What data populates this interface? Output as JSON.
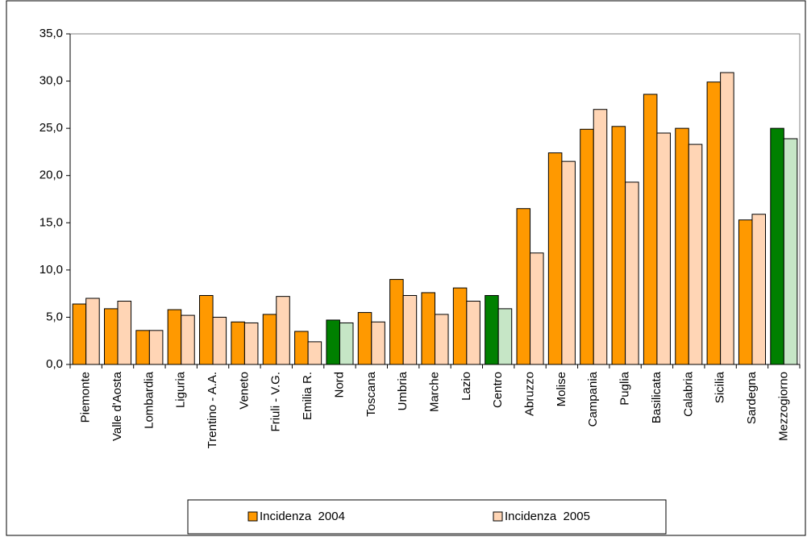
{
  "chart_data": {
    "type": "bar",
    "categories": [
      "Piemonte",
      "Valle d'Aosta",
      "Lombardia",
      "Liguria",
      "Trentino - A.A.",
      "Veneto",
      "Friuli - V.G.",
      "Emilia R.",
      "Nord",
      "Toscana",
      "Umbria",
      "Marche",
      "Lazio",
      "Centro",
      "Abruzzo",
      "Molise",
      "Campania",
      "Puglia",
      "Basilicata",
      "Calabria",
      "Sicilia",
      "Sardegna",
      "Mezzogiorno"
    ],
    "series": [
      {
        "name": "Incidenza  2004",
        "color": "#ff9900",
        "colors": [
          "#ff9900",
          "#ff9900",
          "#ff9900",
          "#ff9900",
          "#ff9900",
          "#ff9900",
          "#ff9900",
          "#ff9900",
          "#008000",
          "#ff9900",
          "#ff9900",
          "#ff9900",
          "#ff9900",
          "#008000",
          "#ff9900",
          "#ff9900",
          "#ff9900",
          "#ff9900",
          "#ff9900",
          "#ff9900",
          "#ff9900",
          "#ff9900",
          "#008000"
        ],
        "values": [
          6.4,
          5.9,
          3.6,
          5.8,
          7.3,
          4.5,
          5.3,
          3.5,
          4.7,
          5.5,
          9.0,
          7.6,
          8.1,
          7.3,
          16.5,
          22.4,
          24.9,
          25.2,
          28.6,
          25.0,
          29.9,
          15.3,
          25.0
        ]
      },
      {
        "name": "Incidenza  2005",
        "color": "#ffd5b5",
        "colors": [
          "#ffd5b5",
          "#ffd5b5",
          "#ffd5b5",
          "#ffd5b5",
          "#ffd5b5",
          "#ffd5b5",
          "#ffd5b5",
          "#ffd5b5",
          "#c6e6c6",
          "#ffd5b5",
          "#ffd5b5",
          "#ffd5b5",
          "#ffd5b5",
          "#c6e6c6",
          "#ffd5b5",
          "#ffd5b5",
          "#ffd5b5",
          "#ffd5b5",
          "#ffd5b5",
          "#ffd5b5",
          "#ffd5b5",
          "#ffd5b5",
          "#c6e6c6"
        ],
        "values": [
          7.0,
          6.7,
          3.6,
          5.2,
          5.0,
          4.4,
          7.2,
          2.4,
          4.4,
          4.5,
          7.3,
          5.3,
          6.7,
          5.9,
          11.8,
          21.5,
          27.0,
          19.3,
          24.5,
          23.3,
          30.9,
          15.9,
          23.9
        ]
      }
    ],
    "ylim": [
      0,
      35
    ],
    "yticks": [
      {
        "value": 0,
        "label": "0,0"
      },
      {
        "value": 5,
        "label": "5,0"
      },
      {
        "value": 10,
        "label": "10,0"
      },
      {
        "value": 15,
        "label": "15,0"
      },
      {
        "value": 20,
        "label": "20,0"
      },
      {
        "value": 25,
        "label": "25,0"
      },
      {
        "value": 30,
        "label": "30,0"
      },
      {
        "value": 35,
        "label": "35,0"
      }
    ],
    "grid": false,
    "legend": "bottom"
  }
}
